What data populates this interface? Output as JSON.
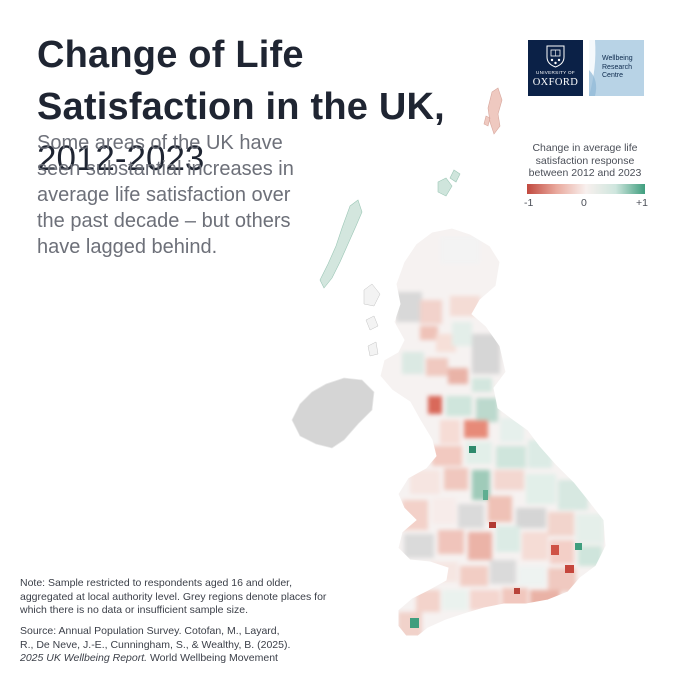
{
  "header": {
    "title_bold": "Change of Life Satisfaction in the UK,",
    "title_years": "2012-2023",
    "subtitle": "Some areas of the UK have seen substantial increases in average life satisfaction over the past decade – but others have lagged behind."
  },
  "logos": {
    "oxford_university": "UNIVERSITY OF",
    "oxford_name": "OXFORD",
    "wrc_line1": "Wellbeing",
    "wrc_line2": "Research",
    "wrc_line3": "Centre"
  },
  "legend": {
    "title": "Change in average life satisfaction response between 2012 and 2023",
    "min_label": "-1",
    "mid_label": "0",
    "max_label": "+1",
    "colors": {
      "negative": "#c1493f",
      "neutral": "#f8f0ee",
      "positive": "#3f9e7e",
      "no_data": "#d9d9d9"
    }
  },
  "footer": {
    "note": "Note: Sample restricted to respondents aged 16 and older, aggregated at local authority level. Grey regions denote places for which there is no data or insufficient sample size.",
    "source_line1": "Source: Annual Population Survey. Cotofan, M., Layard,",
    "source_line2": "R., De Neve, J.-E., Cunningham, S., & Wealthy, B. (2025).",
    "source_report": "2025 UK Wellbeing Report.",
    "source_org": " World Wellbeing Movement"
  }
}
